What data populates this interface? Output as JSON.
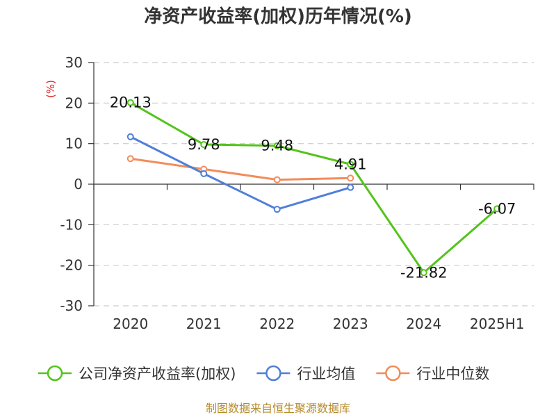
{
  "chart_data": {
    "type": "line",
    "title": "净资产收益率(加权)历年情况(%)",
    "ylabel": "(%)",
    "categories": [
      "2020",
      "2021",
      "2022",
      "2023",
      "2024",
      "2025H1"
    ],
    "ylim": [
      -30,
      30
    ],
    "yticks": [
      30,
      20,
      10,
      0,
      -10,
      -20,
      -30
    ],
    "grid": true,
    "legend_position": "bottom",
    "series": [
      {
        "name": "公司净资产收益率(加权)",
        "color": "#52c41a",
        "values": [
          20.13,
          9.78,
          9.48,
          4.91,
          -21.82,
          -6.07
        ],
        "labels": [
          "20.13",
          "9.78",
          "9.48",
          "4.91",
          "-21.82",
          "-6.07"
        ]
      },
      {
        "name": "行业均值",
        "color": "#4f7fd9",
        "values": [
          11.7,
          2.6,
          -6.2,
          -0.8,
          null,
          null
        ]
      },
      {
        "name": "行业中位数",
        "color": "#f28c5a",
        "values": [
          6.3,
          3.7,
          1.1,
          1.5,
          null,
          null
        ]
      }
    ],
    "source": "制图数据来自恒生聚源数据库"
  }
}
